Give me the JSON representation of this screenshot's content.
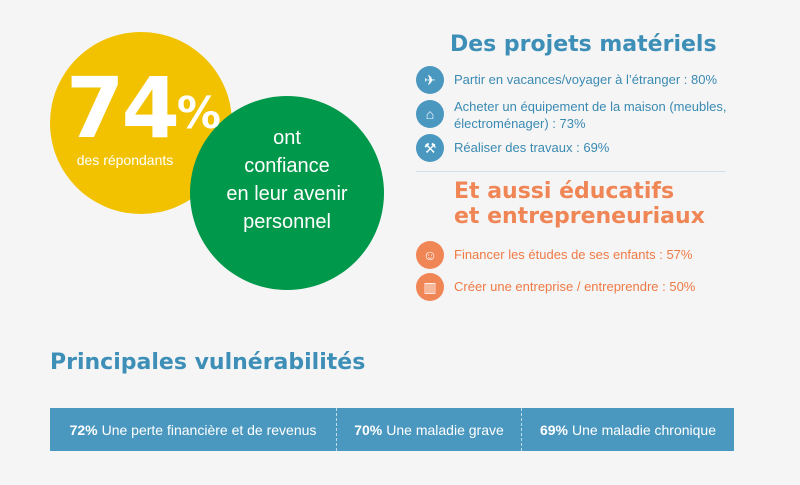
{
  "hero": {
    "percent": "74",
    "percent_sign": "%",
    "respondents": "des répondants",
    "confidence_lines": [
      "ont",
      "confiance",
      "en leur avenir",
      "personnel"
    ],
    "colors": {
      "yellow": "#f2c200",
      "green": "#00984a"
    }
  },
  "projets": {
    "title": "Des projets matériels",
    "items": [
      {
        "icon": "airplane-icon",
        "text": "Partir en vacances/voyager à l’étranger : 80%"
      },
      {
        "icon": "house-icon",
        "text": "Acheter un équipement de la maison (meubles, électroménager) : 73%"
      },
      {
        "icon": "hammer-icon",
        "text": "Réaliser des travaux : 69%"
      }
    ]
  },
  "aussi": {
    "title_lines": [
      "Et aussi éducatifs",
      "et entrepreneuriaux"
    ],
    "items": [
      {
        "icon": "graduate-icon",
        "text": "Financer les études de ses enfants : 57%"
      },
      {
        "icon": "factory-icon",
        "text": "Créer une entreprise / entreprendre : 50%"
      }
    ]
  },
  "vulnerabilites": {
    "title": "Principales vulnérabilités",
    "items": [
      {
        "pct": "72%",
        "label": "Une perte financière et de revenus"
      },
      {
        "pct": "70%",
        "label": "Une maladie grave"
      },
      {
        "pct": "69%",
        "label": "Une maladie chronique"
      }
    ]
  },
  "colors": {
    "blue": "#4a98c0",
    "orange": "#f08656",
    "title_blue": "#3d8fb7"
  }
}
